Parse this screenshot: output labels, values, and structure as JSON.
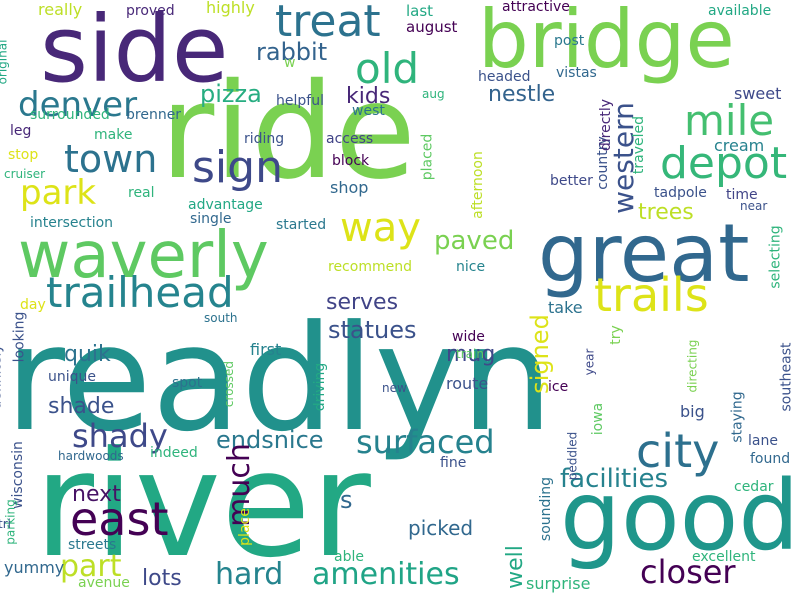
{
  "words": [
    {
      "text": "readlyn",
      "color": "#21918c"
    },
    {
      "text": "river",
      "color": "#22a884"
    },
    {
      "text": "ride",
      "color": "#7ad151"
    },
    {
      "text": "good",
      "color": "#1f968b"
    },
    {
      "text": "side",
      "color": "#482878"
    },
    {
      "text": "bridge",
      "color": "#7ad151"
    },
    {
      "text": "great",
      "color": "#31688e"
    },
    {
      "text": "waverly",
      "color": "#5ec962"
    },
    {
      "text": "treat",
      "color": "#2c728e"
    },
    {
      "text": "trailhead",
      "color": "#25848e"
    },
    {
      "text": "trails",
      "color": "#dde318"
    },
    {
      "text": "city",
      "color": "#2d708e"
    },
    {
      "text": "east",
      "color": "#440154"
    },
    {
      "text": "denver",
      "color": "#2a788e"
    },
    {
      "text": "old",
      "color": "#2fb47c"
    },
    {
      "text": "depot",
      "color": "#35b779"
    },
    {
      "text": "mile",
      "color": "#44bf70"
    },
    {
      "text": "town",
      "color": "#2c728e"
    },
    {
      "text": "sign",
      "color": "#3e4989"
    },
    {
      "text": "park",
      "color": "#dde318"
    },
    {
      "text": "way",
      "color": "#dde318"
    },
    {
      "text": "surfaced",
      "color": "#26828e"
    },
    {
      "text": "closer",
      "color": "#440154"
    },
    {
      "text": "amenities",
      "color": "#20a486"
    },
    {
      "text": "hard",
      "color": "#25848e"
    },
    {
      "text": "endsnice",
      "color": "#2a788e"
    },
    {
      "text": "shady",
      "color": "#3e4989"
    },
    {
      "text": "paved",
      "color": "#7ad151"
    },
    {
      "text": "much",
      "color": "#440154"
    },
    {
      "text": "western",
      "color": "#3b528b"
    },
    {
      "text": "facilities",
      "color": "#26828e"
    },
    {
      "text": "next",
      "color": "#471365"
    },
    {
      "text": "part",
      "color": "#bddf26"
    },
    {
      "text": "rabbit",
      "color": "#33638d"
    },
    {
      "text": "pizza",
      "color": "#27ad81"
    },
    {
      "text": "statues",
      "color": "#3b528b"
    },
    {
      "text": "serves",
      "color": "#414487"
    },
    {
      "text": "lots",
      "color": "#3e4989"
    },
    {
      "text": "mug",
      "color": "#3e4989"
    },
    {
      "text": "quik",
      "color": "#2c728e"
    },
    {
      "text": "shade",
      "color": "#3b528b"
    },
    {
      "text": "signed",
      "color": "#dde318"
    },
    {
      "text": "trees",
      "color": "#bddf26"
    },
    {
      "text": "nestle",
      "color": "#33638d"
    },
    {
      "text": "kids",
      "color": "#482878"
    },
    {
      "text": "well",
      "color": "#22a884"
    },
    {
      "text": "picked",
      "color": "#31688e"
    },
    {
      "text": "s",
      "color": "#31688e"
    },
    {
      "text": "really",
      "color": "#bddf26"
    },
    {
      "text": "highly",
      "color": "#bddf26"
    },
    {
      "text": "august",
      "color": "#440154"
    },
    {
      "text": "last",
      "color": "#22a884"
    },
    {
      "text": "post",
      "color": "#2a788e"
    },
    {
      "text": "attractive",
      "color": "#440154"
    },
    {
      "text": "available",
      "color": "#22a884"
    },
    {
      "text": "proved",
      "color": "#482878"
    },
    {
      "text": "original",
      "color": "#22a884"
    },
    {
      "text": "surrounded",
      "color": "#2fb47c"
    },
    {
      "text": "brenner",
      "color": "#31688e"
    },
    {
      "text": "w",
      "color": "#7ad151"
    },
    {
      "text": "helpful",
      "color": "#3b528b"
    },
    {
      "text": "west",
      "color": "#2c728e"
    },
    {
      "text": "aug",
      "color": "#2fb47c"
    },
    {
      "text": "headed",
      "color": "#3b528b"
    },
    {
      "text": "vistas",
      "color": "#31688e"
    },
    {
      "text": "sweet",
      "color": "#3e4989"
    },
    {
      "text": "cream",
      "color": "#26828e"
    },
    {
      "text": "leg",
      "color": "#482878"
    },
    {
      "text": "make",
      "color": "#2fb47c"
    },
    {
      "text": "riding",
      "color": "#3b528b"
    },
    {
      "text": "access",
      "color": "#414487"
    },
    {
      "text": "block",
      "color": "#440154"
    },
    {
      "text": "stop",
      "color": "#dde318"
    },
    {
      "text": "cruiser",
      "color": "#2fb47c"
    },
    {
      "text": "real",
      "color": "#2fb47c"
    },
    {
      "text": "shop",
      "color": "#31688e"
    },
    {
      "text": "better",
      "color": "#3e4989"
    },
    {
      "text": "country",
      "color": "#3b528b"
    },
    {
      "text": "directly",
      "color": "#482878"
    },
    {
      "text": "traveled",
      "color": "#2fb47c"
    },
    {
      "text": "placed",
      "color": "#5ec962"
    },
    {
      "text": "afternoon",
      "color": "#bddf26"
    },
    {
      "text": "time",
      "color": "#414487"
    },
    {
      "text": "near",
      "color": "#3b528b"
    },
    {
      "text": "tadpole",
      "color": "#3b528b"
    },
    {
      "text": "advantage",
      "color": "#22a884"
    },
    {
      "text": "single",
      "color": "#31688e"
    },
    {
      "text": "started",
      "color": "#2a788e"
    },
    {
      "text": "intersection",
      "color": "#26828e"
    },
    {
      "text": "selecting",
      "color": "#2fb47c"
    },
    {
      "text": "recommend",
      "color": "#bddf26"
    },
    {
      "text": "nice",
      "color": "#25848e"
    },
    {
      "text": "take",
      "color": "#2c728e"
    },
    {
      "text": "day",
      "color": "#dde318"
    },
    {
      "text": "south",
      "color": "#2c728e"
    },
    {
      "text": "definitely",
      "color": "#3b528b"
    },
    {
      "text": "looking",
      "color": "#3b528b"
    },
    {
      "text": "first",
      "color": "#26828e"
    },
    {
      "text": "wide",
      "color": "#440154"
    },
    {
      "text": "train",
      "color": "#5ec962"
    },
    {
      "text": "try",
      "color": "#7ad151"
    },
    {
      "text": "unique",
      "color": "#3b528b"
    },
    {
      "text": "spot",
      "color": "#2c728e"
    },
    {
      "text": "driving",
      "color": "#22a884"
    },
    {
      "text": "crossed",
      "color": "#5ec962"
    },
    {
      "text": "new",
      "color": "#3b528b"
    },
    {
      "text": "route",
      "color": "#3b528b"
    },
    {
      "text": "ice",
      "color": "#440154"
    },
    {
      "text": "year",
      "color": "#3e4989"
    },
    {
      "text": "directing",
      "color": "#7ad151"
    },
    {
      "text": "southeast",
      "color": "#3b528b"
    },
    {
      "text": "staying",
      "color": "#31688e"
    },
    {
      "text": "big",
      "color": "#3b528b"
    },
    {
      "text": "lane",
      "color": "#3b528b"
    },
    {
      "text": "found",
      "color": "#31688e"
    },
    {
      "text": "wisconsin",
      "color": "#3b528b"
    },
    {
      "text": "hardwoods",
      "color": "#31688e"
    },
    {
      "text": "indeed",
      "color": "#2fb47c"
    },
    {
      "text": "fine",
      "color": "#3b528b"
    },
    {
      "text": "iowa",
      "color": "#5ec962"
    },
    {
      "text": "peddled",
      "color": "#3b528b"
    },
    {
      "text": "cedar",
      "color": "#2fb47c"
    },
    {
      "text": "parking",
      "color": "#2fb47c"
    },
    {
      "text": "tri",
      "color": "#3b528b"
    },
    {
      "text": "place",
      "color": "#dde318"
    },
    {
      "text": "streets",
      "color": "#2a788e"
    },
    {
      "text": "able",
      "color": "#2fb47c"
    },
    {
      "text": "sounding",
      "color": "#2c728e"
    },
    {
      "text": "excellent",
      "color": "#2fb47c"
    },
    {
      "text": "yummy",
      "color": "#31688e"
    },
    {
      "text": "avenue",
      "color": "#7ad151"
    },
    {
      "text": "surprise",
      "color": "#2fb47c"
    }
  ]
}
